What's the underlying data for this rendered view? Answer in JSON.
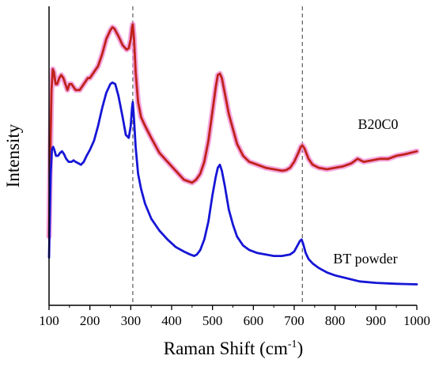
{
  "chart_data": {
    "type": "line",
    "xlabel": "Raman Shift (cm",
    "xlabel_sup": "-1",
    "xlabel_end": ")",
    "ylabel": "Intensity",
    "xlim": [
      100,
      1000
    ],
    "ylim": [
      0,
      1
    ],
    "x_ticks": [
      100,
      200,
      300,
      400,
      500,
      600,
      700,
      800,
      900,
      1000
    ],
    "y_ticks_shown": false,
    "grid": false,
    "reference_lines_x": [
      305,
      720
    ],
    "series": [
      {
        "name": "B20C0",
        "color": "#c0221b",
        "halo_color": "#f08cd6",
        "points": [
          [
            100,
            0.23
          ],
          [
            103,
            0.5
          ],
          [
            106,
            0.72
          ],
          [
            109,
            0.79
          ],
          [
            112,
            0.78
          ],
          [
            116,
            0.74
          ],
          [
            120,
            0.74
          ],
          [
            125,
            0.76
          ],
          [
            130,
            0.77
          ],
          [
            135,
            0.76
          ],
          [
            140,
            0.74
          ],
          [
            145,
            0.72
          ],
          [
            150,
            0.74
          ],
          [
            155,
            0.74
          ],
          [
            160,
            0.73
          ],
          [
            165,
            0.72
          ],
          [
            170,
            0.72
          ],
          [
            175,
            0.72
          ],
          [
            180,
            0.73
          ],
          [
            185,
            0.74
          ],
          [
            190,
            0.75
          ],
          [
            195,
            0.76
          ],
          [
            200,
            0.76
          ],
          [
            210,
            0.78
          ],
          [
            220,
            0.8
          ],
          [
            230,
            0.84
          ],
          [
            240,
            0.89
          ],
          [
            250,
            0.92
          ],
          [
            255,
            0.93
          ],
          [
            260,
            0.925
          ],
          [
            270,
            0.9
          ],
          [
            280,
            0.87
          ],
          [
            290,
            0.855
          ],
          [
            295,
            0.86
          ],
          [
            300,
            0.89
          ],
          [
            303,
            0.93
          ],
          [
            305,
            0.94
          ],
          [
            308,
            0.89
          ],
          [
            312,
            0.78
          ],
          [
            318,
            0.68
          ],
          [
            325,
            0.63
          ],
          [
            335,
            0.6
          ],
          [
            350,
            0.56
          ],
          [
            370,
            0.51
          ],
          [
            390,
            0.48
          ],
          [
            410,
            0.45
          ],
          [
            430,
            0.42
          ],
          [
            450,
            0.41
          ],
          [
            460,
            0.42
          ],
          [
            470,
            0.44
          ],
          [
            480,
            0.48
          ],
          [
            490,
            0.55
          ],
          [
            500,
            0.65
          ],
          [
            508,
            0.73
          ],
          [
            513,
            0.77
          ],
          [
            518,
            0.775
          ],
          [
            523,
            0.76
          ],
          [
            530,
            0.71
          ],
          [
            540,
            0.64
          ],
          [
            550,
            0.59
          ],
          [
            560,
            0.54
          ],
          [
            575,
            0.5
          ],
          [
            590,
            0.48
          ],
          [
            610,
            0.47
          ],
          [
            630,
            0.46
          ],
          [
            650,
            0.455
          ],
          [
            670,
            0.45
          ],
          [
            680,
            0.452
          ],
          [
            690,
            0.46
          ],
          [
            700,
            0.48
          ],
          [
            710,
            0.51
          ],
          [
            716,
            0.53
          ],
          [
            720,
            0.535
          ],
          [
            725,
            0.525
          ],
          [
            735,
            0.49
          ],
          [
            745,
            0.47
          ],
          [
            760,
            0.46
          ],
          [
            780,
            0.455
          ],
          [
            800,
            0.46
          ],
          [
            820,
            0.465
          ],
          [
            840,
            0.475
          ],
          [
            855,
            0.49
          ],
          [
            870,
            0.48
          ],
          [
            890,
            0.485
          ],
          [
            910,
            0.49
          ],
          [
            930,
            0.49
          ],
          [
            950,
            0.5
          ],
          [
            970,
            0.505
          ],
          [
            985,
            0.51
          ],
          [
            1000,
            0.515
          ]
        ]
      },
      {
        "name": "BT powder",
        "color": "#1616d6",
        "points": [
          [
            100,
            0.16
          ],
          [
            102,
            0.3
          ],
          [
            104,
            0.44
          ],
          [
            107,
            0.52
          ],
          [
            110,
            0.53
          ],
          [
            113,
            0.52
          ],
          [
            117,
            0.5
          ],
          [
            122,
            0.5
          ],
          [
            127,
            0.51
          ],
          [
            132,
            0.515
          ],
          [
            137,
            0.505
          ],
          [
            142,
            0.49
          ],
          [
            148,
            0.48
          ],
          [
            155,
            0.48
          ],
          [
            160,
            0.485
          ],
          [
            165,
            0.48
          ],
          [
            172,
            0.475
          ],
          [
            178,
            0.47
          ],
          [
            185,
            0.48
          ],
          [
            192,
            0.5
          ],
          [
            200,
            0.52
          ],
          [
            210,
            0.55
          ],
          [
            220,
            0.6
          ],
          [
            230,
            0.66
          ],
          [
            240,
            0.71
          ],
          [
            250,
            0.74
          ],
          [
            255,
            0.745
          ],
          [
            262,
            0.74
          ],
          [
            270,
            0.7
          ],
          [
            280,
            0.63
          ],
          [
            288,
            0.57
          ],
          [
            295,
            0.56
          ],
          [
            300,
            0.6
          ],
          [
            303,
            0.66
          ],
          [
            305,
            0.68
          ],
          [
            308,
            0.62
          ],
          [
            312,
            0.53
          ],
          [
            318,
            0.44
          ],
          [
            325,
            0.39
          ],
          [
            335,
            0.34
          ],
          [
            350,
            0.29
          ],
          [
            370,
            0.25
          ],
          [
            390,
            0.22
          ],
          [
            410,
            0.195
          ],
          [
            430,
            0.18
          ],
          [
            445,
            0.17
          ],
          [
            455,
            0.165
          ],
          [
            462,
            0.17
          ],
          [
            470,
            0.185
          ],
          [
            480,
            0.22
          ],
          [
            490,
            0.28
          ],
          [
            500,
            0.37
          ],
          [
            508,
            0.43
          ],
          [
            513,
            0.46
          ],
          [
            518,
            0.47
          ],
          [
            523,
            0.45
          ],
          [
            530,
            0.4
          ],
          [
            540,
            0.32
          ],
          [
            550,
            0.27
          ],
          [
            560,
            0.23
          ],
          [
            575,
            0.2
          ],
          [
            590,
            0.185
          ],
          [
            610,
            0.175
          ],
          [
            630,
            0.17
          ],
          [
            650,
            0.165
          ],
          [
            670,
            0.165
          ],
          [
            690,
            0.17
          ],
          [
            700,
            0.18
          ],
          [
            708,
            0.2
          ],
          [
            714,
            0.215
          ],
          [
            718,
            0.22
          ],
          [
            722,
            0.205
          ],
          [
            728,
            0.175
          ],
          [
            735,
            0.155
          ],
          [
            745,
            0.14
          ],
          [
            760,
            0.125
          ],
          [
            780,
            0.11
          ],
          [
            800,
            0.1
          ],
          [
            830,
            0.09
          ],
          [
            860,
            0.08
          ],
          [
            900,
            0.075
          ],
          [
            950,
            0.072
          ],
          [
            1000,
            0.07
          ]
        ]
      }
    ]
  }
}
